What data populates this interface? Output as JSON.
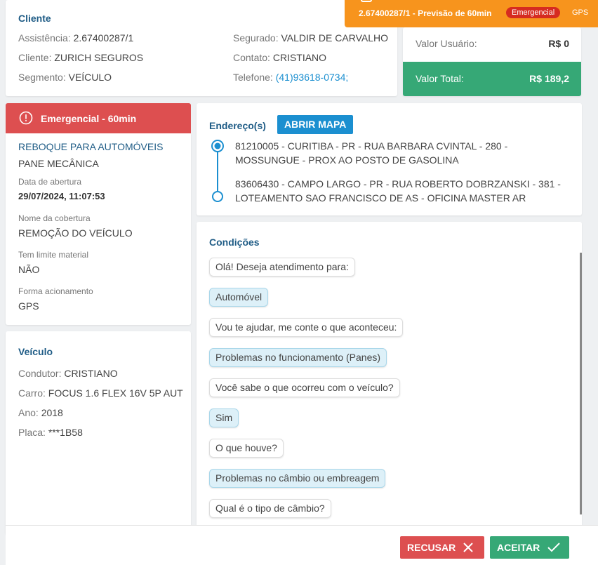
{
  "banner": {
    "text": "2.67400287/1 - Previsão de 60min",
    "badge": "Emergencial",
    "source": "GPS"
  },
  "cliente": {
    "title": "Cliente",
    "left": [
      {
        "label": "Assistência:",
        "value": "2.67400287/1"
      },
      {
        "label": "Cliente:",
        "value": "ZURICH SEGUROS"
      },
      {
        "label": "Segmento:",
        "value": "VEÍCULO"
      }
    ],
    "right": [
      {
        "label": "Segurado:",
        "value": "VALDIR DE CARVALHO"
      },
      {
        "label": "Contato:",
        "value": "CRISTIANO"
      },
      {
        "label": "Telefone:",
        "value": "(41)93618-0734;"
      }
    ]
  },
  "valores": {
    "usuario": {
      "label": "Valor Usuário:",
      "value": "R$ 0"
    },
    "total": {
      "label": "Valor Total:",
      "value": "R$ 189,2"
    }
  },
  "servico": {
    "header": "Emergencial - 60min",
    "name": "REBOQUE PARA AUTOMÓVEIS",
    "problem": "PANE MECÂNICA",
    "fields": [
      {
        "label": "Data de abertura",
        "value": "29/07/2024, 11:07:53"
      },
      {
        "label": "Nome da cobertura",
        "value": "REMOÇÃO DO VEÍCULO"
      },
      {
        "label": "Tem limite material",
        "value": "NÃO"
      },
      {
        "label": "Forma acionamento",
        "value": "GPS"
      }
    ]
  },
  "veiculo": {
    "title": "Veículo",
    "fields": [
      {
        "label": "Condutor:",
        "value": "CRISTIANO"
      },
      {
        "label": "Carro:",
        "value": "FOCUS 1.6 FLEX 16V 5P AUT"
      },
      {
        "label": "Ano:",
        "value": "2018"
      },
      {
        "label": "Placa:",
        "value": "***1B58"
      }
    ]
  },
  "enderecos": {
    "title": "Endereço(s)",
    "button": "ABRIR MAPA",
    "items": [
      "81210005 - CURITIBA - PR - RUA BARBARA CVINTAL - 280 - MOSSUNGUE - PROX AO POSTO DE GASOLINA",
      "83606430 - CAMPO LARGO - PR - RUA ROBERTO DOBRZANSKI - 381 - LOTEAMENTO SAO FRANCISCO DE AS - OFICINA MASTER AR"
    ]
  },
  "condicoes": {
    "title": "Condições",
    "messages": [
      "Olá! Deseja atendimento para:",
      "Automóvel",
      "Vou te ajudar, me conte o que aconteceu:",
      "Problemas no funcionamento (Panes)",
      "Você sabe o que ocorreu com o veículo?",
      "Sim",
      "O que houve?",
      "Problemas no câmbio ou embreagem",
      "Qual é o tipo de câmbio?"
    ]
  },
  "actions": {
    "reject": "RECUSAR",
    "accept": "ACEITAR"
  }
}
